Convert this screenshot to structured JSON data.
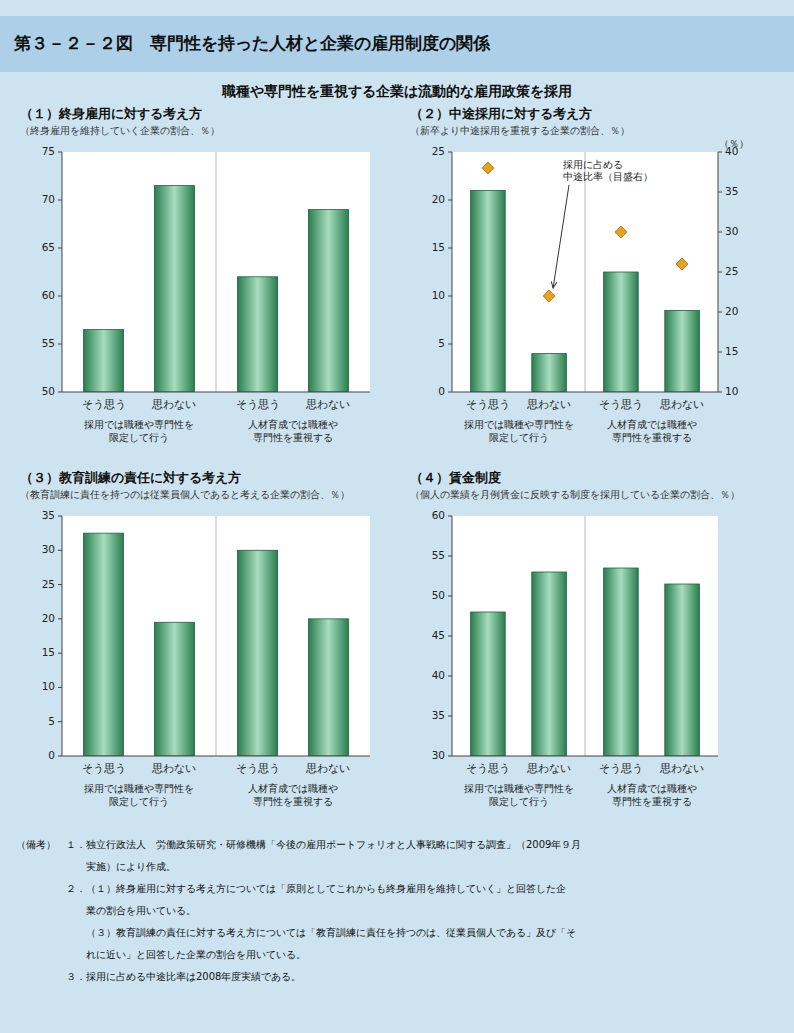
{
  "title": "第３－２－２図　専門性を持った人材と企業の雇用制度の関係",
  "subtitle": "職種や専門性を重視する企業は流動的な雇用政策を採用",
  "notes": [
    "（備考）　１．独立行政法人　労働政策研究・研修機構「今後の雇用ポートフォリオと人事戦略に関する調査」（2009年９月",
    "　　　　　　　実施）により作成。",
    "　　　　　２．（１）終身雇用に対する考え方については「原則としてこれからも終身雇用を維持していく」と回答した企",
    "　　　　　　　業の割合を用いている。",
    "　　　　　　　（３）教育訓練の責任に対する考え方については「教育訓練に責任を持つのは、従業員個人である」及び「そ",
    "　　　　　　　れに近い」と回答した企業の割合を用いている。",
    "　　　　　３．採用に占める中途比率は2008年度実績である。"
  ],
  "chart_data": [
    {
      "type": "bar",
      "title": "（１）終身雇用に対する考え方",
      "subtitle": "（終身雇用を維持していく企業の割合、％）",
      "categories": [
        "そう思う",
        "思わない",
        "そう思う",
        "思わない"
      ],
      "group_labels": [
        "採用では職種や専門性を\n限定して行う",
        "人材育成では職種や\n専門性を重視する"
      ],
      "values": [
        56.5,
        71.5,
        62.0,
        69.0
      ],
      "color": "#3cb371",
      "ylim": [
        50,
        75
      ],
      "yticks": [
        50,
        55,
        60,
        65,
        70,
        75
      ],
      "grid": false
    },
    {
      "type": "bar",
      "title": "（２）中途採用に対する考え方",
      "subtitle": "（新卒より中途採用を重視する企業の割合、％）",
      "categories": [
        "そう思う",
        "思わない",
        "そう思う",
        "思わない"
      ],
      "group_labels": [
        "採用では職種や専門性を\n限定して行う",
        "人材育成では職種や\n専門性を重視する"
      ],
      "series": [
        {
          "type": "bar",
          "color": "#3cb371",
          "values": [
            21.0,
            4.0,
            12.5,
            8.5
          ]
        },
        {
          "type": "scatter",
          "marker": "diamond",
          "color": "#e8a020",
          "axis": "y2",
          "values": [
            38.0,
            22.0,
            30.0,
            26.0
          ]
        }
      ],
      "ylim": [
        0,
        25
      ],
      "yticks": [
        0,
        5,
        10,
        15,
        20,
        25
      ],
      "y2lim": [
        10,
        40
      ],
      "y2ticks": [
        10,
        15,
        20,
        25,
        30,
        35,
        40
      ],
      "y2label": "（％）",
      "annotation": "採用に占める\n中途比率（目盛右）",
      "grid": false
    },
    {
      "type": "bar",
      "title": "（３）教育訓練の責任に対する考え方",
      "subtitle": "（教育訓練に責任を持つのは従業員個人であると考える企業の割合、％）",
      "categories": [
        "そう思う",
        "思わない",
        "そう思う",
        "思わない"
      ],
      "group_labels": [
        "採用では職種や専門性を\n限定して行う",
        "人材育成では職種や\n専門性を重視する"
      ],
      "values": [
        32.5,
        19.5,
        30.0,
        20.0
      ],
      "color": "#3cb371",
      "ylim": [
        0,
        35
      ],
      "yticks": [
        0,
        5,
        10,
        15,
        20,
        25,
        30,
        35
      ],
      "grid": false
    },
    {
      "type": "bar",
      "title": "（４）賃金制度",
      "subtitle": "（個人の業績を月例賃金に反映する制度を採用している企業の割合、％）",
      "categories": [
        "そう思う",
        "思わない",
        "そう思う",
        "思わない"
      ],
      "group_labels": [
        "採用では職種や専門性を\n限定して行う",
        "人材育成では職種や\n専門性を重視する"
      ],
      "values": [
        48.0,
        53.0,
        53.5,
        51.5
      ],
      "color": "#3cb371",
      "ylim": [
        30,
        60
      ],
      "yticks": [
        30,
        35,
        40,
        45,
        50,
        55,
        60
      ],
      "grid": false
    }
  ]
}
